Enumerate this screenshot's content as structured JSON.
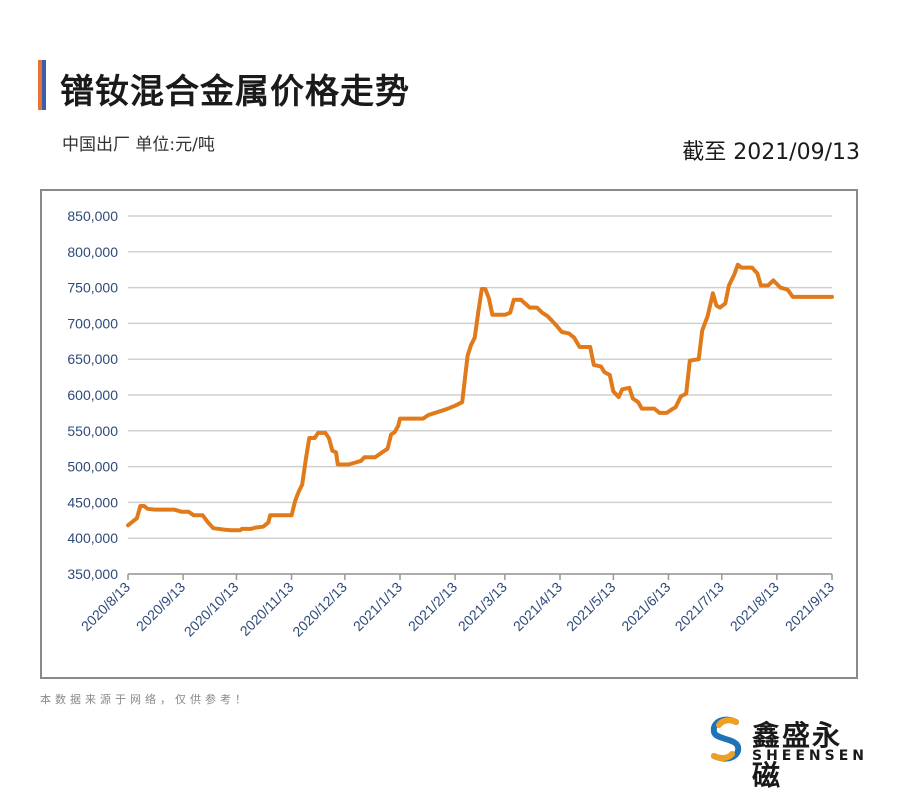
{
  "header": {
    "title": "镨钕混合金属价格走势",
    "subtitle": "中国出厂 单位:元/吨",
    "as_of": "截至 2021/09/13"
  },
  "footer": {
    "disclaimer": "本数据来源于网络，仅供参考！",
    "logo_name": "鑫盛永磁",
    "logo_en": "SHEENSEN"
  },
  "colors": {
    "line": "#e07a1a",
    "grid": "#d0d0d0",
    "axis_text": "#2f4a7a"
  },
  "chart_data": {
    "type": "line",
    "title": "镨钕混合金属价格走势",
    "xlabel": "",
    "ylabel": "",
    "ylim": [
      350000,
      850000
    ],
    "yticks": [
      350000,
      400000,
      450000,
      500000,
      550000,
      600000,
      650000,
      700000,
      750000,
      800000,
      850000
    ],
    "ytick_labels": [
      "350,000",
      "400,000",
      "450,000",
      "500,000",
      "550,000",
      "600,000",
      "650,000",
      "700,000",
      "750,000",
      "800,000",
      "850,000"
    ],
    "xtick_labels": [
      "2020/8/13",
      "2020/9/13",
      "2020/10/13",
      "2020/11/13",
      "2020/12/13",
      "2021/1/13",
      "2021/2/13",
      "2021/3/13",
      "2021/4/13",
      "2021/5/13",
      "2021/6/13",
      "2021/7/13",
      "2021/8/13",
      "2021/9/13"
    ],
    "grid": true,
    "legend": "none",
    "series": [
      {
        "points": [
          [
            "2020-08-13",
            418000
          ],
          [
            "2020-08-15",
            422000
          ],
          [
            "2020-08-18",
            428000
          ],
          [
            "2020-08-20",
            445000
          ],
          [
            "2020-08-22",
            445000
          ],
          [
            "2020-08-24",
            441000
          ],
          [
            "2020-08-28",
            440000
          ],
          [
            "2020-09-03",
            440000
          ],
          [
            "2020-09-08",
            440000
          ],
          [
            "2020-09-12",
            437000
          ],
          [
            "2020-09-16",
            437000
          ],
          [
            "2020-09-19",
            432000
          ],
          [
            "2020-09-24",
            432000
          ],
          [
            "2020-09-27",
            422000
          ],
          [
            "2020-09-30",
            414000
          ],
          [
            "2020-10-06",
            412000
          ],
          [
            "2020-10-10",
            411000
          ],
          [
            "2020-10-15",
            411000
          ],
          [
            "2020-10-16",
            413000
          ],
          [
            "2020-10-21",
            413000
          ],
          [
            "2020-10-24",
            415000
          ],
          [
            "2020-10-28",
            416000
          ],
          [
            "2020-10-31",
            422000
          ],
          [
            "2020-11-01",
            432000
          ],
          [
            "2020-11-07",
            432000
          ],
          [
            "2020-11-13",
            432000
          ],
          [
            "2020-11-15",
            452000
          ],
          [
            "2020-11-17",
            465000
          ],
          [
            "2020-11-19",
            475000
          ],
          [
            "2020-11-21",
            510000
          ],
          [
            "2020-11-23",
            540000
          ],
          [
            "2020-11-26",
            540000
          ],
          [
            "2020-11-28",
            547000
          ],
          [
            "2020-12-02",
            547000
          ],
          [
            "2020-12-04",
            540000
          ],
          [
            "2020-12-06",
            522000
          ],
          [
            "2020-12-08",
            520000
          ],
          [
            "2020-12-09",
            503000
          ],
          [
            "2020-12-15",
            503000
          ],
          [
            "2020-12-18",
            505000
          ],
          [
            "2020-12-22",
            508000
          ],
          [
            "2020-12-24",
            513000
          ],
          [
            "2020-12-30",
            513000
          ],
          [
            "2021-01-03",
            520000
          ],
          [
            "2021-01-06",
            525000
          ],
          [
            "2021-01-08",
            545000
          ],
          [
            "2021-01-10",
            548000
          ],
          [
            "2021-01-12",
            557000
          ],
          [
            "2021-01-13",
            567000
          ],
          [
            "2021-01-18",
            567000
          ],
          [
            "2021-01-26",
            567000
          ],
          [
            "2021-01-29",
            572000
          ],
          [
            "2021-02-03",
            576000
          ],
          [
            "2021-02-08",
            580000
          ],
          [
            "2021-02-13",
            585000
          ],
          [
            "2021-02-17",
            590000
          ],
          [
            "2021-02-20",
            655000
          ],
          [
            "2021-02-22",
            670000
          ],
          [
            "2021-02-24",
            680000
          ],
          [
            "2021-02-26",
            715000
          ],
          [
            "2021-02-28",
            748000
          ],
          [
            "2021-03-02",
            748000
          ],
          [
            "2021-03-04",
            735000
          ],
          [
            "2021-03-06",
            712000
          ],
          [
            "2021-03-13",
            712000
          ],
          [
            "2021-03-16",
            715000
          ],
          [
            "2021-03-18",
            733000
          ],
          [
            "2021-03-22",
            733000
          ],
          [
            "2021-03-27",
            722000
          ],
          [
            "2021-03-31",
            722000
          ],
          [
            "2021-04-03",
            715000
          ],
          [
            "2021-04-06",
            710000
          ],
          [
            "2021-04-08",
            705000
          ],
          [
            "2021-04-11",
            697000
          ],
          [
            "2021-04-14",
            688000
          ],
          [
            "2021-04-18",
            686000
          ],
          [
            "2021-04-21",
            680000
          ],
          [
            "2021-04-24",
            667000
          ],
          [
            "2021-04-30",
            667000
          ],
          [
            "2021-05-02",
            642000
          ],
          [
            "2021-05-06",
            640000
          ],
          [
            "2021-05-08",
            632000
          ],
          [
            "2021-05-11",
            628000
          ],
          [
            "2021-05-13",
            605000
          ],
          [
            "2021-05-16",
            597000
          ],
          [
            "2021-05-18",
            608000
          ],
          [
            "2021-05-22",
            610000
          ],
          [
            "2021-05-24",
            595000
          ],
          [
            "2021-05-27",
            590000
          ],
          [
            "2021-05-29",
            581000
          ],
          [
            "2021-06-05",
            581000
          ],
          [
            "2021-06-08",
            575000
          ],
          [
            "2021-06-12",
            575000
          ],
          [
            "2021-06-15",
            580000
          ],
          [
            "2021-06-17",
            583000
          ],
          [
            "2021-06-20",
            598000
          ],
          [
            "2021-06-23",
            602000
          ],
          [
            "2021-06-25",
            648000
          ],
          [
            "2021-06-30",
            650000
          ],
          [
            "2021-07-02",
            690000
          ],
          [
            "2021-07-05",
            710000
          ],
          [
            "2021-07-08",
            742000
          ],
          [
            "2021-07-10",
            725000
          ],
          [
            "2021-07-12",
            722000
          ],
          [
            "2021-07-15",
            728000
          ],
          [
            "2021-07-17",
            753000
          ],
          [
            "2021-07-20",
            768000
          ],
          [
            "2021-07-22",
            782000
          ],
          [
            "2021-07-24",
            778000
          ],
          [
            "2021-07-28",
            778000
          ],
          [
            "2021-07-30",
            778000
          ],
          [
            "2021-08-02",
            770000
          ],
          [
            "2021-08-04",
            753000
          ],
          [
            "2021-08-08",
            753000
          ],
          [
            "2021-08-11",
            760000
          ],
          [
            "2021-08-15",
            750000
          ],
          [
            "2021-08-19",
            747000
          ],
          [
            "2021-08-22",
            737000
          ],
          [
            "2021-08-30",
            737000
          ],
          [
            "2021-09-13",
            737000
          ]
        ]
      }
    ]
  }
}
